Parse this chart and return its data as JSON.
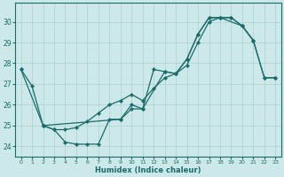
{
  "xlabel": "Humidex (Indice chaleur)",
  "bg_color": "#cce8e8",
  "grid_color": "#aad0d0",
  "line_color": "#1a6b6b",
  "xlim": [
    -0.5,
    23.5
  ],
  "ylim": [
    23.5,
    30.9
  ],
  "xticks": [
    0,
    1,
    2,
    3,
    4,
    5,
    6,
    7,
    8,
    9,
    10,
    11,
    12,
    13,
    14,
    15,
    16,
    17,
    18,
    19,
    20,
    21,
    22,
    23
  ],
  "yticks": [
    24,
    25,
    26,
    27,
    28,
    29,
    30
  ],
  "line1_x": [
    0,
    1,
    2,
    3,
    4,
    5,
    6,
    7,
    8,
    9,
    10,
    11,
    12,
    13,
    14,
    15,
    16,
    17,
    18,
    19,
    20,
    21
  ],
  "line1_y": [
    27.7,
    26.9,
    25.0,
    24.8,
    24.2,
    24.1,
    24.1,
    24.1,
    25.3,
    25.3,
    25.8,
    25.8,
    27.7,
    27.6,
    27.5,
    28.2,
    29.4,
    30.2,
    30.2,
    30.2,
    29.8,
    29.1
  ],
  "line2_x": [
    2,
    3,
    4,
    5,
    6,
    7,
    8,
    9,
    10,
    11,
    12,
    13,
    14,
    15,
    16,
    17,
    18,
    19,
    20,
    21,
    22,
    23
  ],
  "line2_y": [
    25.0,
    24.8,
    24.8,
    24.9,
    25.2,
    25.6,
    26.0,
    26.2,
    26.5,
    26.2,
    26.8,
    27.3,
    27.5,
    27.9,
    29.0,
    30.0,
    30.2,
    30.2,
    29.8,
    29.1,
    27.3,
    27.3
  ],
  "line3_x": [
    0,
    2,
    9,
    10,
    11,
    13,
    14,
    15,
    16,
    17,
    18,
    20,
    21,
    22,
    23
  ],
  "line3_y": [
    27.7,
    25.0,
    25.3,
    26.0,
    25.8,
    27.6,
    27.5,
    28.2,
    29.4,
    30.2,
    30.2,
    29.8,
    29.1,
    27.3,
    27.3
  ]
}
